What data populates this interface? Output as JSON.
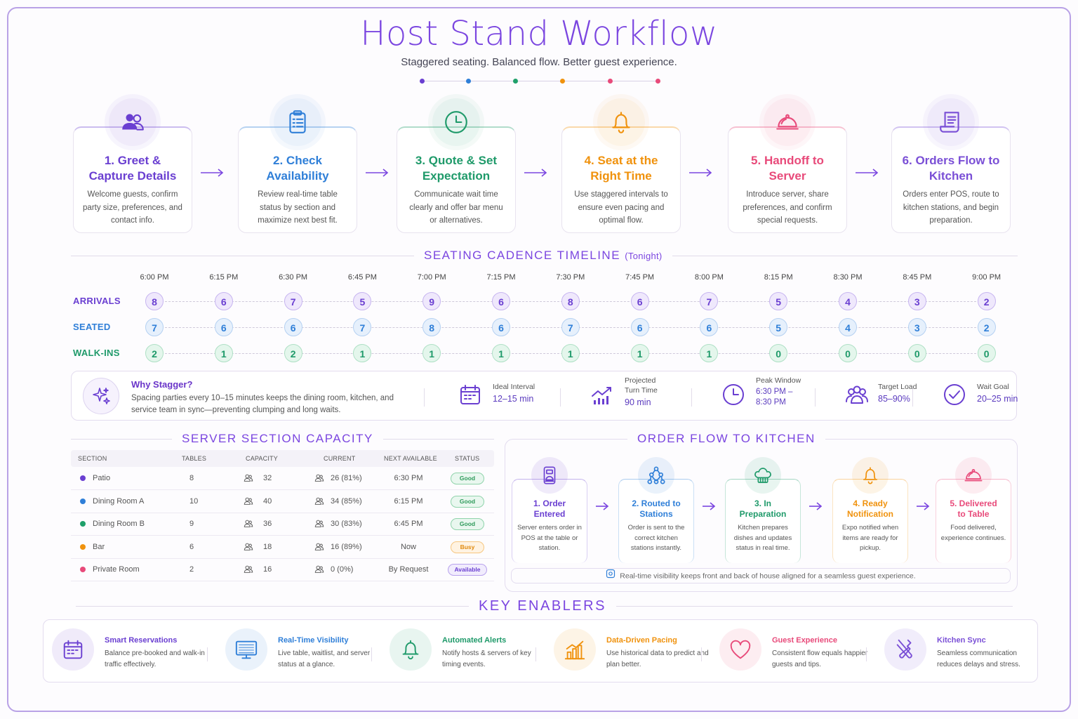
{
  "header": {
    "title": "Host Stand Workflow",
    "subtitle": "Staggered seating. Balanced flow. Better guest experience."
  },
  "colors": {
    "purple": "#7b46e0",
    "blue": "#2f7fd8",
    "teal": "#1fa06a",
    "orange": "#f0920d",
    "pink": "#e84a7a",
    "violet": "#7a4fd6"
  },
  "steps": [
    {
      "name": "1. Greet &\nCapture Details",
      "desc": "Welcome guests, confirm party size, preferences, and contact info.",
      "icon": "guests-icon",
      "color": "#6a3fd1"
    },
    {
      "name": "2. Check\nAvailability",
      "desc": "Review real-time table status by section and maximize next best fit.",
      "icon": "clipboard-icon",
      "color": "#2f7fd8"
    },
    {
      "name": "3. Quote & Set\nExpectation",
      "desc": "Communicate wait time clearly and offer bar menu or alternatives.",
      "icon": "clock-icon",
      "color": "#1f9a6a"
    },
    {
      "name": "4. Seat at the\nRight Time",
      "desc": "Use staggered intervals to ensure even pacing and optimal flow.",
      "icon": "bell-icon",
      "color": "#f0920d"
    },
    {
      "name": "5. Handoff to\nServer",
      "desc": "Introduce server, share preferences, and confirm special requests.",
      "icon": "cloche-icon",
      "color": "#e84a7a"
    },
    {
      "name": "6. Orders Flow to\nKitchen",
      "desc": "Orders enter POS, route to kitchen stations, and begin preparation.",
      "icon": "ticket-icon",
      "color": "#7a4fd6"
    }
  ],
  "timeline": {
    "heading": "SEATING CADENCE TIMELINE",
    "heading_suffix": "(Tonight)",
    "times": [
      "6:00 PM",
      "6:15 PM",
      "6:30 PM",
      "6:45 PM",
      "7:00 PM",
      "7:15 PM",
      "7:30 PM",
      "7:45 PM",
      "8:00 PM",
      "8:15 PM",
      "8:30 PM",
      "8:45 PM",
      "9:00 PM"
    ],
    "rows": [
      {
        "label": "ARRIVALS",
        "values": [
          8,
          6,
          7,
          5,
          9,
          6,
          8,
          6,
          7,
          5,
          4,
          3,
          2
        ],
        "color": "#6a3fd1",
        "fill": "#efe8fc",
        "stroke": "#c7b5f0"
      },
      {
        "label": "SEATED",
        "values": [
          7,
          6,
          6,
          7,
          8,
          6,
          7,
          6,
          6,
          5,
          4,
          3,
          2
        ],
        "color": "#2f7fd8",
        "fill": "#e6f0fc",
        "stroke": "#b5d1f2"
      },
      {
        "label": "WALK-INS",
        "values": [
          2,
          1,
          2,
          1,
          1,
          1,
          1,
          1,
          1,
          0,
          0,
          0,
          0
        ],
        "color": "#1f9a6a",
        "fill": "#e4f6ec",
        "stroke": "#aee0c5"
      }
    ]
  },
  "why": {
    "title": "Why Stagger?",
    "body": "Spacing parties every 10–15 minutes keeps the dining room, kitchen, and service team in sync—preventing clumping and long waits.",
    "metrics": [
      {
        "label": "Ideal Interval",
        "value": "12–15 min",
        "icon": "calendar-icon"
      },
      {
        "label": "Projected\nTurn Time",
        "value": "90 min",
        "icon": "trend-chart-icon"
      },
      {
        "label": "Peak Window",
        "value": "6:30 PM –\n8:30 PM",
        "icon": "clock-icon"
      },
      {
        "label": "Target Load",
        "value": "85–90%",
        "icon": "group-icon"
      },
      {
        "label": "Wait Goal",
        "value": "20–25 min",
        "icon": "check-circle-icon"
      }
    ]
  },
  "capacity": {
    "heading": "SERVER SECTION CAPACITY",
    "columns": [
      "SECTION",
      "TABLES",
      "CAPACITY",
      "CURRENT",
      "NEXT AVAILABLE",
      "STATUS"
    ],
    "rows": [
      {
        "section": "Patio",
        "tables": "8",
        "capacity": "32",
        "current": "26 (81%)",
        "next": "6:30 PM",
        "status": "Good",
        "dot": "#6a3fd1"
      },
      {
        "section": "Dining Room A",
        "tables": "10",
        "capacity": "40",
        "current": "34 (85%)",
        "next": "6:15 PM",
        "status": "Good",
        "dot": "#2f7fd8"
      },
      {
        "section": "Dining Room B",
        "tables": "9",
        "capacity": "36",
        "current": "30 (83%)",
        "next": "6:45 PM",
        "status": "Good",
        "dot": "#1fa06a"
      },
      {
        "section": "Bar",
        "tables": "6",
        "capacity": "18",
        "current": "16 (89%)",
        "next": "Now",
        "status": "Busy",
        "dot": "#f0920d"
      },
      {
        "section": "Private Room",
        "tables": "2",
        "capacity": "16",
        "current": "0 (0%)",
        "next": "By Request",
        "status": "Available",
        "dot": "#e84a7a"
      }
    ]
  },
  "order_flow": {
    "heading": "ORDER FLOW TO KITCHEN",
    "steps": [
      {
        "name": "1. Order\nEntered",
        "desc": "Server enters order in POS at the table or station.",
        "icon": "pos-terminal-icon",
        "color": "#6a3fd1"
      },
      {
        "name": "2. Routed to\nStations",
        "desc": "Order is sent to the correct kitchen stations instantly.",
        "icon": "network-icon",
        "color": "#2f7fd8"
      },
      {
        "name": "3. In\nPreparation",
        "desc": "Kitchen prepares dishes and updates status in real time.",
        "icon": "chef-hat-icon",
        "color": "#1f9a6a"
      },
      {
        "name": "4. Ready\nNotification",
        "desc": "Expo notified when items are ready for pickup.",
        "icon": "bell-icon",
        "color": "#f0920d"
      },
      {
        "name": "5. Delivered\nto Table",
        "desc": "Food delivered, experience continues.",
        "icon": "cloche-icon",
        "color": "#e84a7a"
      }
    ],
    "footnote": "Real-time visibility keeps front and back of house aligned for a seamless guest experience."
  },
  "enablers": {
    "heading": "KEY ENABLERS",
    "items": [
      {
        "title": "Smart Reservations",
        "desc": "Balance pre-booked and walk-in traffic effectively.",
        "icon": "calendar-icon",
        "color": "#6a3fd1"
      },
      {
        "title": "Real-Time Visibility",
        "desc": "Live table, waitlist, and server status at a glance.",
        "icon": "monitor-icon",
        "color": "#2f7fd8"
      },
      {
        "title": "Automated Alerts",
        "desc": "Notify hosts & servers of key timing events.",
        "icon": "bell-icon",
        "color": "#1f9a6a"
      },
      {
        "title": "Data-Driven Pacing",
        "desc": "Use historical data to predict and plan better.",
        "icon": "bar-chart-icon",
        "color": "#f0920d"
      },
      {
        "title": "Guest Experience",
        "desc": "Consistent flow equals happier guests and tips.",
        "icon": "heart-icon",
        "color": "#e84a7a"
      },
      {
        "title": "Kitchen Sync",
        "desc": "Seamless communication reduces delays and stress.",
        "icon": "utensils-icon",
        "color": "#7a4fd6"
      }
    ]
  }
}
